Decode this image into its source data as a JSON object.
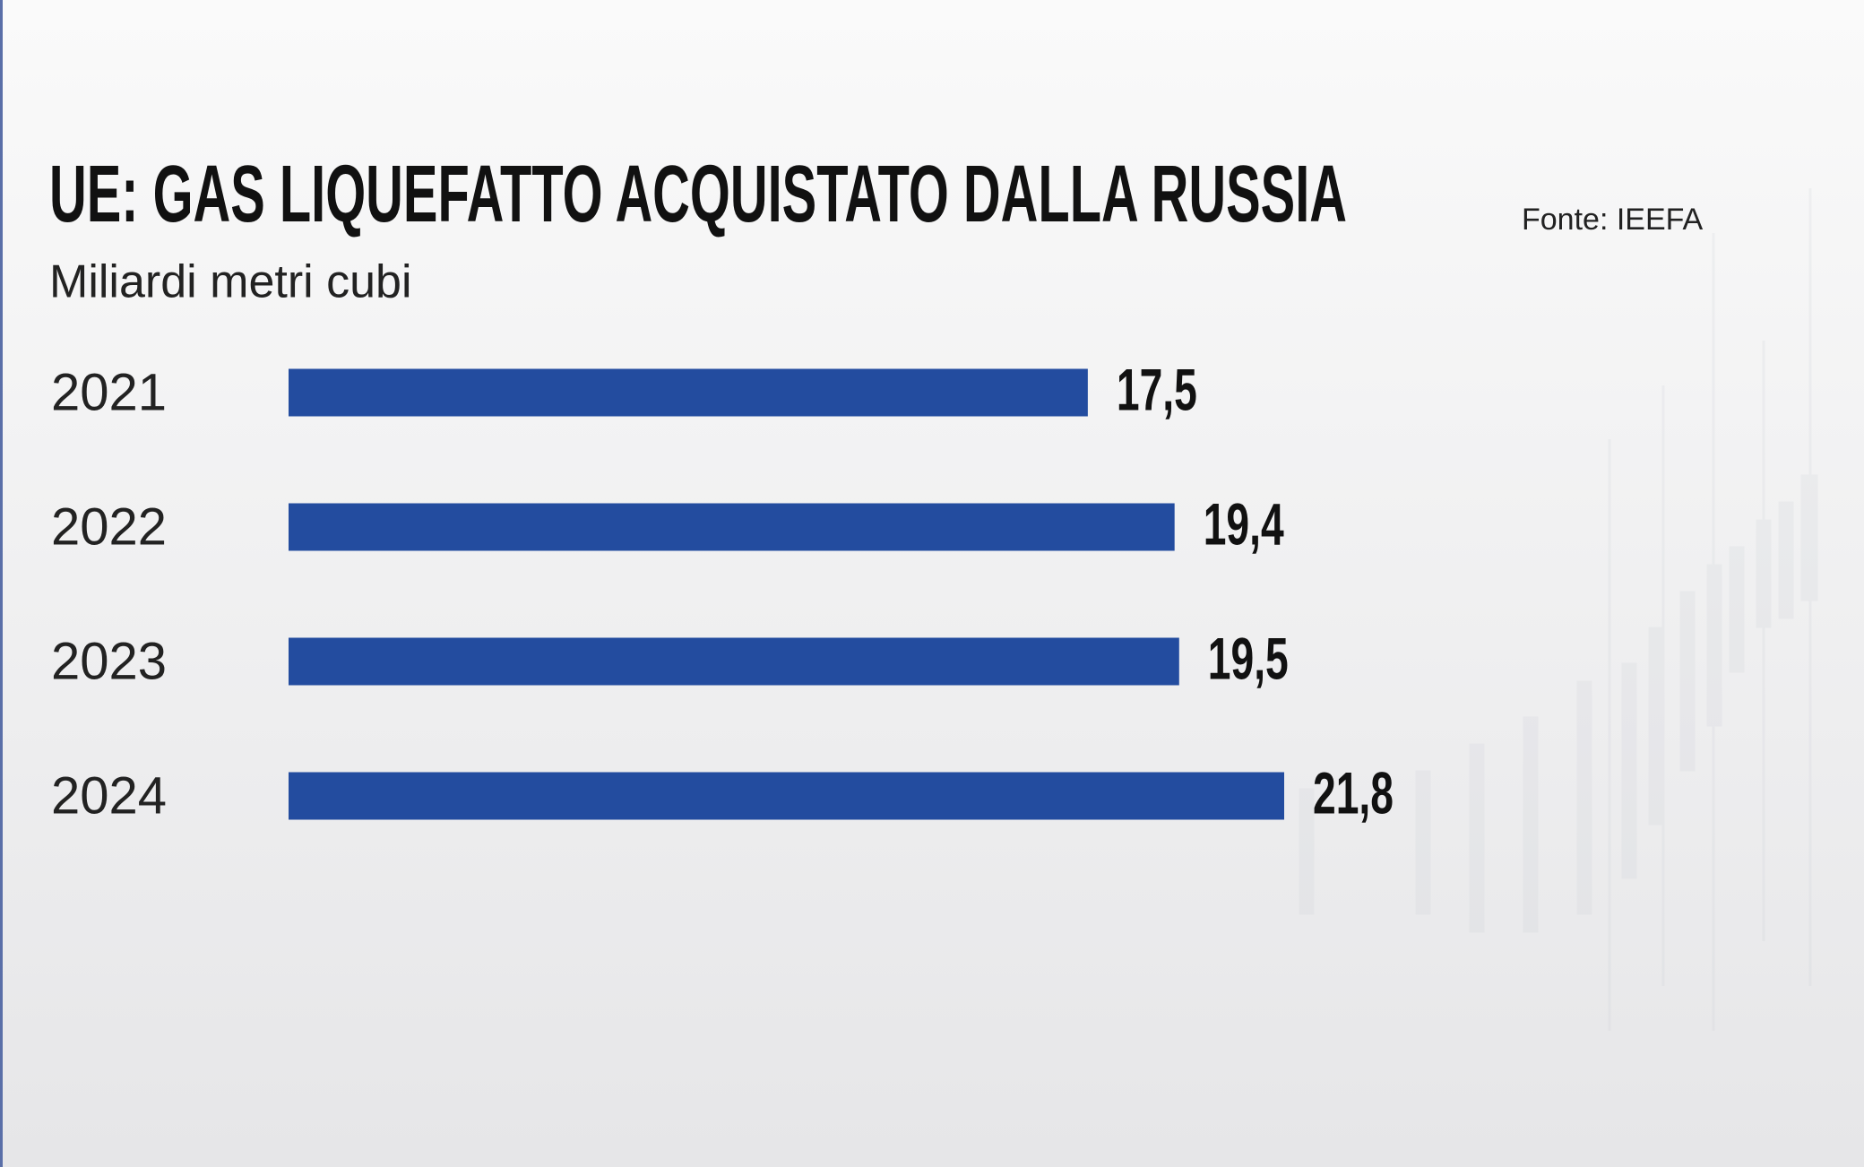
{
  "chart_data": {
    "type": "bar",
    "orientation": "horizontal",
    "title": "UE: GAS LIQUEFATTO ACQUISTATO DALLA RUSSIA",
    "subtitle": "Miliardi metri cubi",
    "source": "Fonte:  IEEFA",
    "categories": [
      "2021",
      "2022",
      "2023",
      "2024"
    ],
    "values": [
      17.5,
      19.4,
      19.5,
      21.8
    ],
    "value_labels": [
      "17,5",
      "19,4",
      "19,5",
      "21,8"
    ],
    "color": "#234c9f"
  }
}
